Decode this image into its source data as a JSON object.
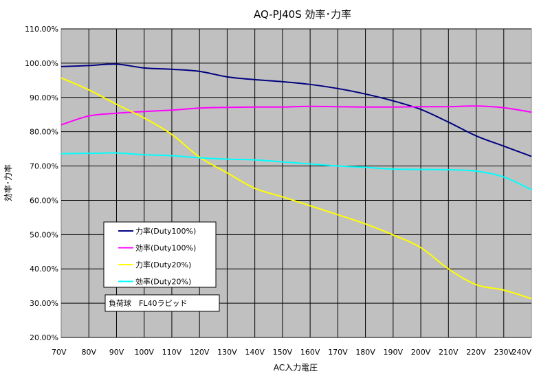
{
  "chart_data": {
    "type": "line",
    "title": "AQ-PJ40S 効率･力率",
    "xlabel": "AC入力電圧",
    "ylabel": "効率･力率",
    "categories": [
      "70V",
      "80V",
      "90V",
      "100V",
      "110V",
      "120V",
      "130V",
      "140V",
      "150V",
      "160V",
      "170V",
      "180V",
      "190V",
      "200V",
      "210V",
      "220V",
      "230V",
      "240V"
    ],
    "x": [
      70,
      80,
      90,
      100,
      110,
      120,
      130,
      140,
      150,
      160,
      170,
      180,
      190,
      200,
      210,
      220,
      230,
      240
    ],
    "xlim": [
      70,
      240
    ],
    "ylim": [
      20,
      110
    ],
    "yticks": [
      "20.00%",
      "30.00%",
      "40.00%",
      "50.00%",
      "60.00%",
      "70.00%",
      "80.00%",
      "90.00%",
      "100.00%",
      "110.00%"
    ],
    "grid": true,
    "background": "#c0c0c0",
    "legend_position": "lower-left",
    "series": [
      {
        "name": "力率(Duty100%)",
        "color": "#000080",
        "values": [
          99.0,
          99.3,
          99.7,
          98.6,
          98.2,
          97.6,
          96.0,
          95.2,
          94.6,
          93.8,
          92.6,
          91.0,
          89.0,
          86.5,
          82.8,
          78.8,
          75.8,
          72.8
        ]
      },
      {
        "name": "効率(Duty100%)",
        "color": "#ff00ff",
        "values": [
          82.0,
          84.6,
          85.4,
          85.9,
          86.3,
          86.9,
          87.1,
          87.2,
          87.2,
          87.4,
          87.3,
          87.2,
          87.2,
          87.3,
          87.3,
          87.5,
          87.0,
          85.7
        ]
      },
      {
        "name": "力率(Duty20%)",
        "color": "#ffff00",
        "values": [
          95.7,
          92.2,
          88.0,
          84.0,
          79.2,
          72.6,
          68.0,
          63.5,
          61.0,
          58.4,
          55.8,
          53.1,
          49.9,
          46.2,
          40.0,
          35.4,
          33.8,
          31.3
        ]
      },
      {
        "name": "効率(Duty20%)",
        "color": "#00ffff",
        "values": [
          73.6,
          73.7,
          73.8,
          73.3,
          73.0,
          72.4,
          72.0,
          71.8,
          71.2,
          70.6,
          70.0,
          69.6,
          69.1,
          69.0,
          68.9,
          68.5,
          66.8,
          63.1
        ]
      }
    ],
    "annotation": "負荷球　FL40ラピッド"
  }
}
